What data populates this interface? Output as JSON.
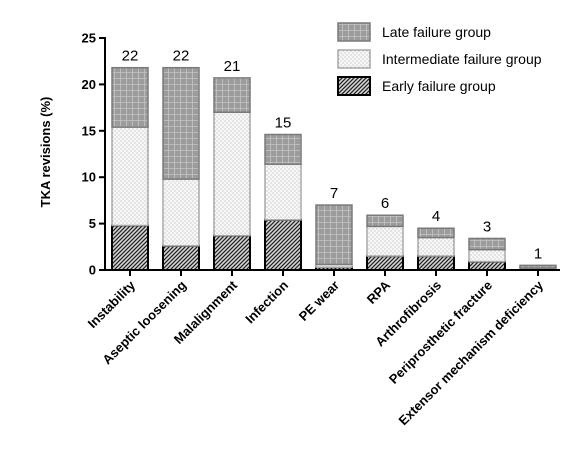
{
  "chart_data": {
    "type": "bar",
    "stacked": true,
    "ylabel": "TKA revisions (%)",
    "xlabel": "",
    "ylim": [
      0,
      25
    ],
    "yticks": [
      0,
      5,
      10,
      15,
      20,
      25
    ],
    "categories": [
      "Instability",
      "Aseptic loosening",
      "Malalignment",
      "Infection",
      "PE wear",
      "RPA",
      "Arthrofibrosis",
      "Periprosthetic fracture",
      "Extensor mechanism deficiency"
    ],
    "totals": [
      "22",
      "22",
      "21",
      "15",
      "7",
      "6",
      "4",
      "3",
      "1"
    ],
    "legend_position": "top-right",
    "grid": false,
    "series": [
      {
        "name": "Early failure group",
        "pattern": "diagonal-hatch",
        "color": "#555555",
        "values": [
          4.8,
          2.6,
          3.7,
          5.4,
          0.3,
          1.5,
          1.5,
          0.9,
          0
        ]
      },
      {
        "name": "Intermediate failure group",
        "pattern": "dots",
        "color": "#f2f2f2",
        "values": [
          10.6,
          7.2,
          13.3,
          6.0,
          0.3,
          3.2,
          2.0,
          1.3,
          0.2
        ]
      },
      {
        "name": "Late failure group",
        "pattern": "grid",
        "color": "#999999",
        "values": [
          6.4,
          12.0,
          3.7,
          3.2,
          6.4,
          1.2,
          1.0,
          1.2,
          0.3
        ]
      }
    ],
    "legend_order": [
      "Late failure group",
      "Intermediate failure group",
      "Early failure group"
    ]
  }
}
